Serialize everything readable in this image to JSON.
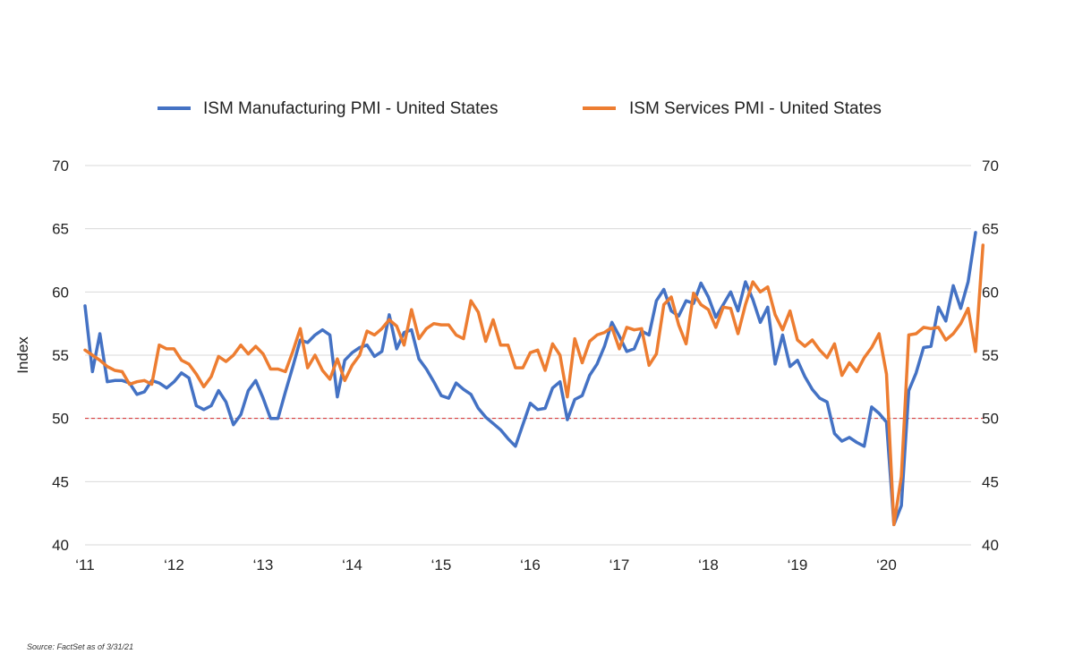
{
  "chart_data": {
    "type": "line",
    "ylabel": "Index",
    "ylim": [
      40,
      70
    ],
    "yticks": [
      40,
      45,
      50,
      55,
      60,
      65,
      70
    ],
    "xlim": [
      2011,
      2021.25
    ],
    "xticks": [
      {
        "label": "‘11",
        "x": 2011
      },
      {
        "label": "‘12",
        "x": 2012
      },
      {
        "label": "‘13",
        "x": 2013
      },
      {
        "label": "‘14",
        "x": 2014
      },
      {
        "label": "‘15",
        "x": 2015
      },
      {
        "label": "‘16",
        "x": 2016
      },
      {
        "label": "‘17",
        "x": 2017
      },
      {
        "label": "‘18",
        "x": 2018
      },
      {
        "label": "‘19",
        "x": 2019
      },
      {
        "label": "‘20",
        "x": 2020
      }
    ],
    "reference_line": {
      "value": 50,
      "color": "#d62728",
      "style": "dashed"
    },
    "grid": true,
    "legend_position": "top",
    "series": [
      {
        "name": "ISM Manufacturing PMI - United States",
        "color": "#4472c4",
        "start": 2011.0,
        "step": 0.0833333,
        "values": [
          58.9,
          53.7,
          56.7,
          52.9,
          53.0,
          53.0,
          52.8,
          51.9,
          52.1,
          53.0,
          52.8,
          52.4,
          52.9,
          53.6,
          53.2,
          51.0,
          50.7,
          51.0,
          52.2,
          51.3,
          49.5,
          50.3,
          52.2,
          53.0,
          51.6,
          50.0,
          50.0,
          52.1,
          54.1,
          56.2,
          56.0,
          56.6,
          57.0,
          56.6,
          51.7,
          54.6,
          55.2,
          55.6,
          55.8,
          54.9,
          55.3,
          58.2,
          55.5,
          56.8,
          57.0,
          54.7,
          53.9,
          52.9,
          51.8,
          51.6,
          52.8,
          52.3,
          51.9,
          50.8,
          50.1,
          49.6,
          49.1,
          48.4,
          47.8,
          49.5,
          51.2,
          50.7,
          50.8,
          52.4,
          52.9,
          49.9,
          51.5,
          51.8,
          53.4,
          54.3,
          55.7,
          57.6,
          56.5,
          55.3,
          55.5,
          56.9,
          56.6,
          59.3,
          60.2,
          58.5,
          58.1,
          59.3,
          59.1,
          60.7,
          59.6,
          58.0,
          59.0,
          60.0,
          58.5,
          60.8,
          59.4,
          57.6,
          58.8,
          54.3,
          56.6,
          54.1,
          54.6,
          53.3,
          52.3,
          51.6,
          51.3,
          48.8,
          48.2,
          48.5,
          48.1,
          47.8,
          50.9,
          50.4,
          49.7,
          41.6,
          43.1,
          52.2,
          53.6,
          55.6,
          55.7,
          58.8,
          57.7,
          60.5,
          58.7,
          60.8,
          64.7
        ]
      },
      {
        "name": "ISM Services PMI - United States",
        "color": "#ed7d31",
        "start": 2011.0,
        "step": 0.0833333,
        "values": [
          55.4,
          55.0,
          54.6,
          54.1,
          53.8,
          53.7,
          52.7,
          52.9,
          53.0,
          52.7,
          55.8,
          55.5,
          55.5,
          54.6,
          54.3,
          53.5,
          52.5,
          53.3,
          54.9,
          54.5,
          55.0,
          55.8,
          55.1,
          55.7,
          55.1,
          53.9,
          53.9,
          53.7,
          55.3,
          57.1,
          54.0,
          55.0,
          53.8,
          53.1,
          54.7,
          53.0,
          54.2,
          55.0,
          56.9,
          56.6,
          57.1,
          57.8,
          57.3,
          55.8,
          58.6,
          56.3,
          57.1,
          57.5,
          57.4,
          57.4,
          56.6,
          56.3,
          59.3,
          58.4,
          56.1,
          57.8,
          55.8,
          55.8,
          54.0,
          54.0,
          55.2,
          55.4,
          53.8,
          55.9,
          55.0,
          51.7,
          56.3,
          54.4,
          56.1,
          56.6,
          56.8,
          57.2,
          55.5,
          57.2,
          57.0,
          57.1,
          54.2,
          55.1,
          59.0,
          59.6,
          57.4,
          55.9,
          59.9,
          59.0,
          58.6,
          57.2,
          58.8,
          58.7,
          56.7,
          59.0,
          60.8,
          60.0,
          60.4,
          58.2,
          57.0,
          58.5,
          56.2,
          55.7,
          56.2,
          55.4,
          54.8,
          55.9,
          53.4,
          54.4,
          53.7,
          54.8,
          55.6,
          56.7,
          53.5,
          41.6,
          45.4,
          56.6,
          56.7,
          57.2,
          57.1,
          57.2,
          56.2,
          56.7,
          57.5,
          58.7,
          55.3,
          63.7
        ]
      }
    ]
  },
  "source": "Source: FactSet as of 3/31/21"
}
